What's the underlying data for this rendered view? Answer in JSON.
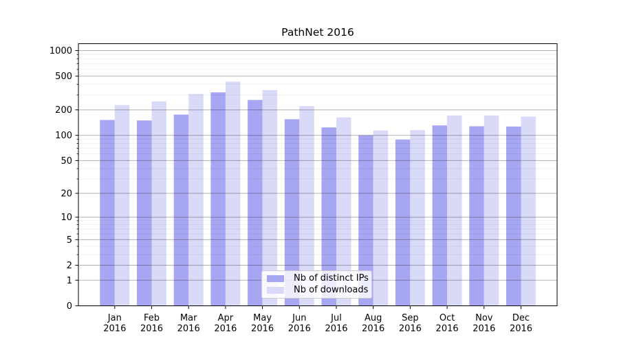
{
  "chart_data": {
    "type": "bar",
    "title": "PathNet 2016",
    "categories": [
      "Jan",
      "Feb",
      "Mar",
      "Apr",
      "May",
      "Jun",
      "Jul",
      "Aug",
      "Sep",
      "Oct",
      "Nov",
      "Dec"
    ],
    "category_year": "2016",
    "series": [
      {
        "name": "Nb of distinct IPs",
        "color": "#a6a6f2",
        "values": [
          152,
          150,
          176,
          322,
          262,
          155,
          124,
          100,
          89,
          131,
          128,
          127
        ]
      },
      {
        "name": "Nb of downloads",
        "color": "#d9d9f8",
        "values": [
          228,
          252,
          308,
          431,
          342,
          222,
          163,
          114,
          115,
          172,
          172,
          167
        ]
      }
    ],
    "yscale": "log1p",
    "ylim": [
      0,
      1200
    ],
    "y_major_ticks": [
      0,
      1,
      2,
      5,
      10,
      20,
      50,
      100,
      200,
      500,
      1000
    ],
    "y_minor_ticks": [
      3,
      4,
      6,
      7,
      8,
      9,
      30,
      40,
      60,
      70,
      80,
      90,
      300,
      400,
      600,
      700,
      800,
      900
    ],
    "grid": "major+minor",
    "legend_position": "lower center",
    "colors": {
      "grid_major": "rgba(0,0,0,0.30)",
      "grid_minor": "rgba(0,0,0,0.07)",
      "spine": "#000000",
      "text": "#000000"
    }
  }
}
